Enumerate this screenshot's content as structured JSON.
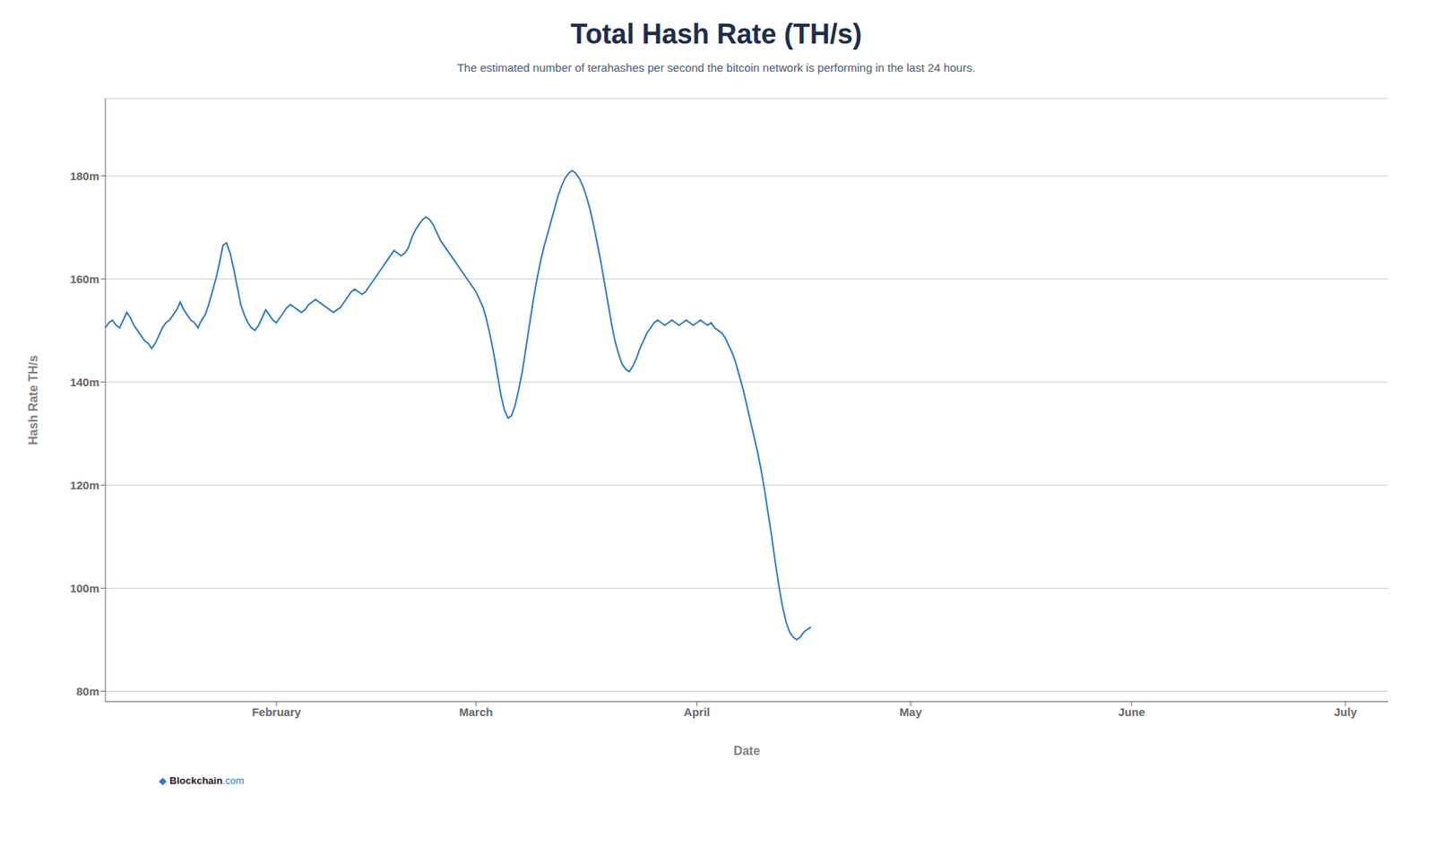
{
  "chart_data": {
    "type": "line",
    "title": "Total Hash Rate (TH/s)",
    "subtitle": "The estimated number of terahashes per second the bitcoin network is performing in the last 24 hours.",
    "x_label": "Date",
    "y_label": "Hash Rate TH/s",
    "color": "#2979cc",
    "grid": true,
    "xlim": [
      0,
      180
    ],
    "xticks": [
      {
        "value": 24,
        "label": "February"
      },
      {
        "value": 52,
        "label": "March"
      },
      {
        "value": 83,
        "label": "April"
      },
      {
        "value": 113,
        "label": "May"
      },
      {
        "value": 144,
        "label": "June"
      },
      {
        "value": 174,
        "label": "July"
      }
    ],
    "ylim": [
      78,
      195
    ],
    "yticks": [
      {
        "value": 80,
        "label": "80m"
      },
      {
        "value": 100,
        "label": "100m"
      },
      {
        "value": 120,
        "label": "120m"
      },
      {
        "value": 140,
        "label": "140m"
      },
      {
        "value": 160,
        "label": "160m"
      },
      {
        "value": 180,
        "label": "180m"
      }
    ],
    "annotations": [
      {
        "text": "◆",
        "color": "#2979cc"
      },
      {
        "text": "Blockchain",
        "color": "#1a1a2e"
      },
      {
        "text": ".com",
        "color": "#2979cc"
      }
    ],
    "x": [
      0,
      0.5,
      1,
      1.5,
      2,
      2.5,
      3,
      3.5,
      4,
      4.5,
      5,
      5.5,
      6,
      6.5,
      7,
      7.5,
      8,
      8.5,
      9,
      9.5,
      10,
      10.5,
      11,
      11.5,
      12,
      12.5,
      13,
      13.5,
      14,
      14.5,
      15,
      15.5,
      16,
      16.5,
      17,
      17.5,
      18,
      18.5,
      19,
      19.5,
      20,
      20.5,
      21,
      21.5,
      22,
      22.5,
      23,
      23.5,
      24,
      24.5,
      25,
      25.5,
      26,
      26.5,
      27,
      27.5,
      28,
      28.5,
      29,
      29.5,
      30,
      30.5,
      31,
      31.5,
      32,
      32.5,
      33,
      33.5,
      34,
      34.5,
      35,
      35.5,
      36,
      36.5,
      37,
      37.5,
      38,
      38.5,
      39,
      39.5,
      40,
      40.5,
      41,
      41.5,
      42,
      42.5,
      43,
      43.5,
      44,
      44.5,
      45,
      45.5,
      46,
      46.5,
      47,
      47.5,
      48,
      48.5,
      49,
      49.5,
      50,
      50.5,
      51,
      51.5,
      52,
      52.5,
      53,
      53.5,
      54,
      54.5,
      55,
      55.5,
      56,
      56.5,
      57,
      57.5,
      58,
      58.5,
      59,
      59.5,
      60,
      60.5,
      61,
      61.5,
      62,
      62.5,
      63,
      63.5,
      64,
      64.5,
      65,
      65.5,
      66,
      66.5,
      67,
      67.5,
      68,
      68.5,
      69,
      69.5,
      70,
      70.5,
      71,
      71.5,
      72,
      72.5,
      73,
      73.5,
      74,
      74.5,
      75,
      75.5,
      76,
      76.5,
      77,
      77.5,
      78,
      78.5,
      79,
      79.5,
      80,
      80.5,
      81,
      81.5,
      82,
      82.5,
      83,
      83.5,
      84,
      84.5,
      85,
      85.5,
      86,
      86.5,
      87,
      87.5,
      88,
      88.5,
      89,
      89.5,
      90,
      90.5,
      91,
      91.5,
      92,
      92.5,
      93,
      93.5,
      94,
      94.5,
      95,
      95.5,
      96,
      96.5,
      97,
      97.5,
      98,
      98.5,
      99
    ],
    "values": [
      150.5,
      151.5,
      152.0,
      151.0,
      150.5,
      152.0,
      153.5,
      152.5,
      151.0,
      150.0,
      149.0,
      148.0,
      147.5,
      146.5,
      147.5,
      149.0,
      150.5,
      151.5,
      152.0,
      153.0,
      154.0,
      155.5,
      154.0,
      153.0,
      152.0,
      151.5,
      150.5,
      152.0,
      153.0,
      155.0,
      157.5,
      160.0,
      163.0,
      166.5,
      167.0,
      165.0,
      162.0,
      158.5,
      155.0,
      153.0,
      151.5,
      150.5,
      150.0,
      151.0,
      152.5,
      154.0,
      153.0,
      152.0,
      151.5,
      152.5,
      153.5,
      154.5,
      155.0,
      154.5,
      154.0,
      153.5,
      154.0,
      155.0,
      155.5,
      156.0,
      155.5,
      155.0,
      154.5,
      154.0,
      153.5,
      154.0,
      154.5,
      155.5,
      156.5,
      157.5,
      158.0,
      157.5,
      157.0,
      157.5,
      158.5,
      159.5,
      160.5,
      161.5,
      162.5,
      163.5,
      164.5,
      165.5,
      165.0,
      164.5,
      165.0,
      166.0,
      168.0,
      169.5,
      170.5,
      171.5,
      172.0,
      171.5,
      170.5,
      169.0,
      167.5,
      166.5,
      165.5,
      164.5,
      163.5,
      162.5,
      161.5,
      160.5,
      159.5,
      158.5,
      157.5,
      156.0,
      154.5,
      152.0,
      149.0,
      145.5,
      141.5,
      137.5,
      134.5,
      133.0,
      133.5,
      135.5,
      138.5,
      142.0,
      146.5,
      151.0,
      155.5,
      159.5,
      163.0,
      166.0,
      168.5,
      171.0,
      173.5,
      176.0,
      178.0,
      179.5,
      180.5,
      181.0,
      180.5,
      179.5,
      178.0,
      176.0,
      173.5,
      170.5,
      167.0,
      163.5,
      159.5,
      155.5,
      151.5,
      148.0,
      145.5,
      143.5,
      142.5,
      142.0,
      143.0,
      144.5,
      146.5,
      148.0,
      149.5,
      150.5,
      151.5,
      152.0,
      151.5,
      151.0,
      151.5,
      152.0,
      151.5,
      151.0,
      151.5,
      152.0,
      151.5,
      151.0,
      151.5,
      152.0,
      151.5,
      151.0,
      151.5,
      150.5,
      150.0,
      149.5,
      148.5,
      147.0,
      145.5,
      143.5,
      141.0,
      138.5,
      135.5,
      132.5,
      129.5,
      126.5,
      123.0,
      119.0,
      114.5,
      110.0,
      105.0,
      100.5,
      96.5,
      93.5,
      91.5,
      90.5,
      90.0,
      90.5,
      91.5,
      92.0,
      92.5
    ]
  }
}
